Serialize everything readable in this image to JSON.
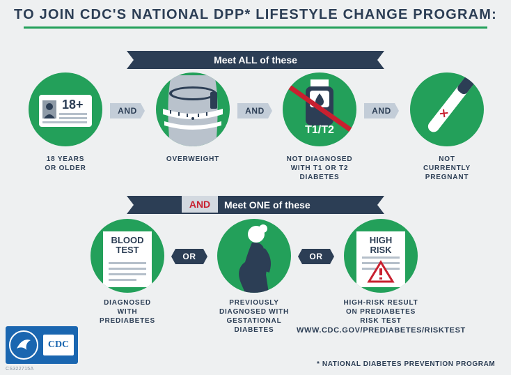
{
  "header": {
    "title": "TO JOIN CDC'S NATIONAL DPP* LIFESTYLE CHANGE PROGRAM:"
  },
  "section_all": {
    "label": "Meet ALL of these",
    "items": [
      {
        "icon": "id-card-18-plus-icon",
        "badge": "18+",
        "caption": "18 YEARS\nOR OLDER"
      },
      {
        "icon": "measuring-tape-waist-icon",
        "caption": "OVERWEIGHT"
      },
      {
        "icon": "glucose-meter-crossed-icon",
        "badge": "T1/T2",
        "caption": "NOT DIAGNOSED\nWITH T1 OR T2\nDIABETES"
      },
      {
        "icon": "pregnancy-test-negative-icon",
        "caption": "NOT\nCURRENTLY\nPREGNANT"
      }
    ],
    "connector": "AND"
  },
  "section_one": {
    "prefix": "AND",
    "label": "Meet ONE of these",
    "items": [
      {
        "icon": "blood-test-document-icon",
        "badge": "BLOOD\nTEST",
        "caption": "DIAGNOSED\nWITH\nPREDIABETES"
      },
      {
        "icon": "pregnant-woman-icon",
        "caption": "PREVIOUSLY\nDIAGNOSED WITH\nGESTATIONAL\nDIABETES"
      },
      {
        "icon": "high-risk-warning-document-icon",
        "badge": "HIGH\nRISK",
        "caption": "HIGH-RISK RESULT\nON PREDIABETES\nRISK TEST"
      }
    ],
    "connector": "OR"
  },
  "url": "WWW.CDC.GOV/PREDIABETES/RISKTEST",
  "footnote": "* NATIONAL DIABETES PREVENTION PROGRAM",
  "logo": {
    "text": "CDC"
  },
  "code": "CS322715A",
  "colors": {
    "green": "#23a05a",
    "navy": "#2c3e55",
    "red": "#c8202f",
    "tag": "#c3cdd8",
    "bg": "#eef0f1"
  }
}
